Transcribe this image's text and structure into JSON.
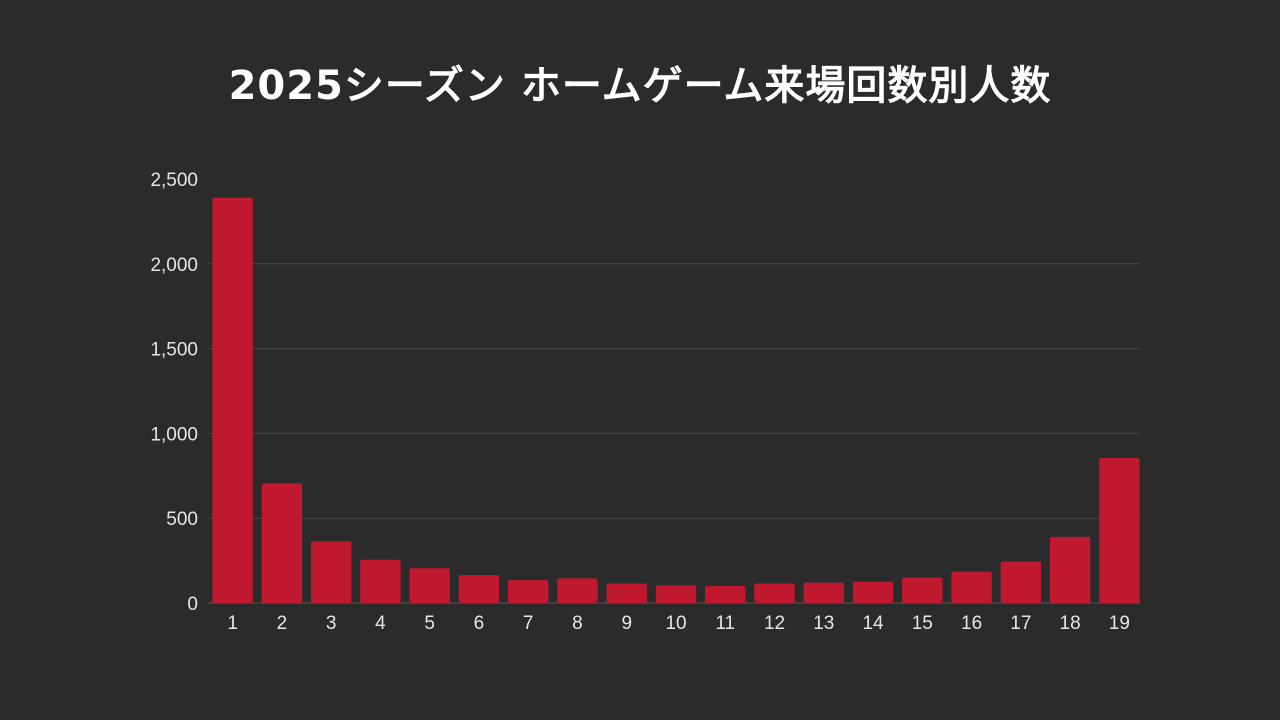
{
  "chart_data": {
    "type": "bar",
    "title": "2025シーズン ホームゲーム来場回数別人数",
    "xlabel": "",
    "ylabel": "",
    "categories": [
      "1",
      "2",
      "3",
      "4",
      "5",
      "6",
      "7",
      "8",
      "9",
      "10",
      "11",
      "12",
      "13",
      "14",
      "15",
      "16",
      "17",
      "18",
      "19"
    ],
    "values": [
      2390,
      705,
      365,
      255,
      205,
      165,
      135,
      145,
      115,
      105,
      100,
      115,
      120,
      125,
      150,
      185,
      245,
      390,
      855
    ],
    "ylim": [
      0,
      2500
    ],
    "yticks": [
      0,
      500,
      1000,
      1500,
      2000,
      2500
    ],
    "ytick_labels": [
      "0",
      "500",
      "1,000",
      "1,500",
      "2,000",
      "2,500"
    ],
    "grid": true,
    "bar_color": "#c0182e",
    "background": "#2b2b2b"
  }
}
